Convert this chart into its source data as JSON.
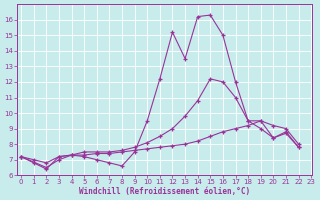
{
  "xlabel": "Windchill (Refroidissement éolien,°C)",
  "background_color": "#c8ecec",
  "grid_color": "#b0d8d8",
  "line_color": "#993399",
  "xlim_min": 0,
  "xlim_max": 23,
  "ylim_min": 6,
  "ylim_max": 17,
  "yticks": [
    6,
    7,
    8,
    9,
    10,
    11,
    12,
    13,
    14,
    15,
    16
  ],
  "xticks": [
    0,
    1,
    2,
    3,
    4,
    5,
    6,
    7,
    8,
    9,
    10,
    11,
    12,
    13,
    14,
    15,
    16,
    17,
    18,
    19,
    20,
    21,
    22,
    23
  ],
  "series1_x": [
    0,
    1,
    2,
    3,
    4,
    5,
    6,
    7,
    8,
    9,
    10,
    11,
    12,
    13,
    14,
    15,
    16,
    17,
    18,
    19,
    20,
    21,
    22
  ],
  "series1_y": [
    7.2,
    6.8,
    6.4,
    7.2,
    7.3,
    7.2,
    7.0,
    6.8,
    6.6,
    7.5,
    9.5,
    12.2,
    15.2,
    13.5,
    16.2,
    16.3,
    15.0,
    12.0,
    9.5,
    9.5,
    8.4,
    8.7,
    7.8
  ],
  "series2_x": [
    0,
    2,
    3,
    4,
    5,
    6,
    7,
    8,
    9,
    10,
    11,
    12,
    13,
    14,
    15,
    16,
    17,
    18,
    19,
    20,
    21,
    22
  ],
  "series2_y": [
    7.2,
    6.5,
    7.0,
    7.3,
    7.5,
    7.5,
    7.5,
    7.6,
    7.8,
    8.1,
    8.5,
    9.0,
    9.8,
    10.8,
    12.2,
    12.0,
    11.0,
    9.5,
    9.0,
    8.4,
    8.8,
    7.8
  ],
  "series3_x": [
    0,
    1,
    2,
    3,
    4,
    5,
    6,
    7,
    8,
    9,
    10,
    11,
    12,
    13,
    14,
    15,
    16,
    17,
    18,
    19,
    20,
    21,
    22
  ],
  "series3_y": [
    7.2,
    7.0,
    6.8,
    7.2,
    7.3,
    7.3,
    7.4,
    7.4,
    7.5,
    7.6,
    7.7,
    7.8,
    7.9,
    8.0,
    8.2,
    8.5,
    8.8,
    9.0,
    9.2,
    9.5,
    9.2,
    9.0,
    8.0
  ]
}
